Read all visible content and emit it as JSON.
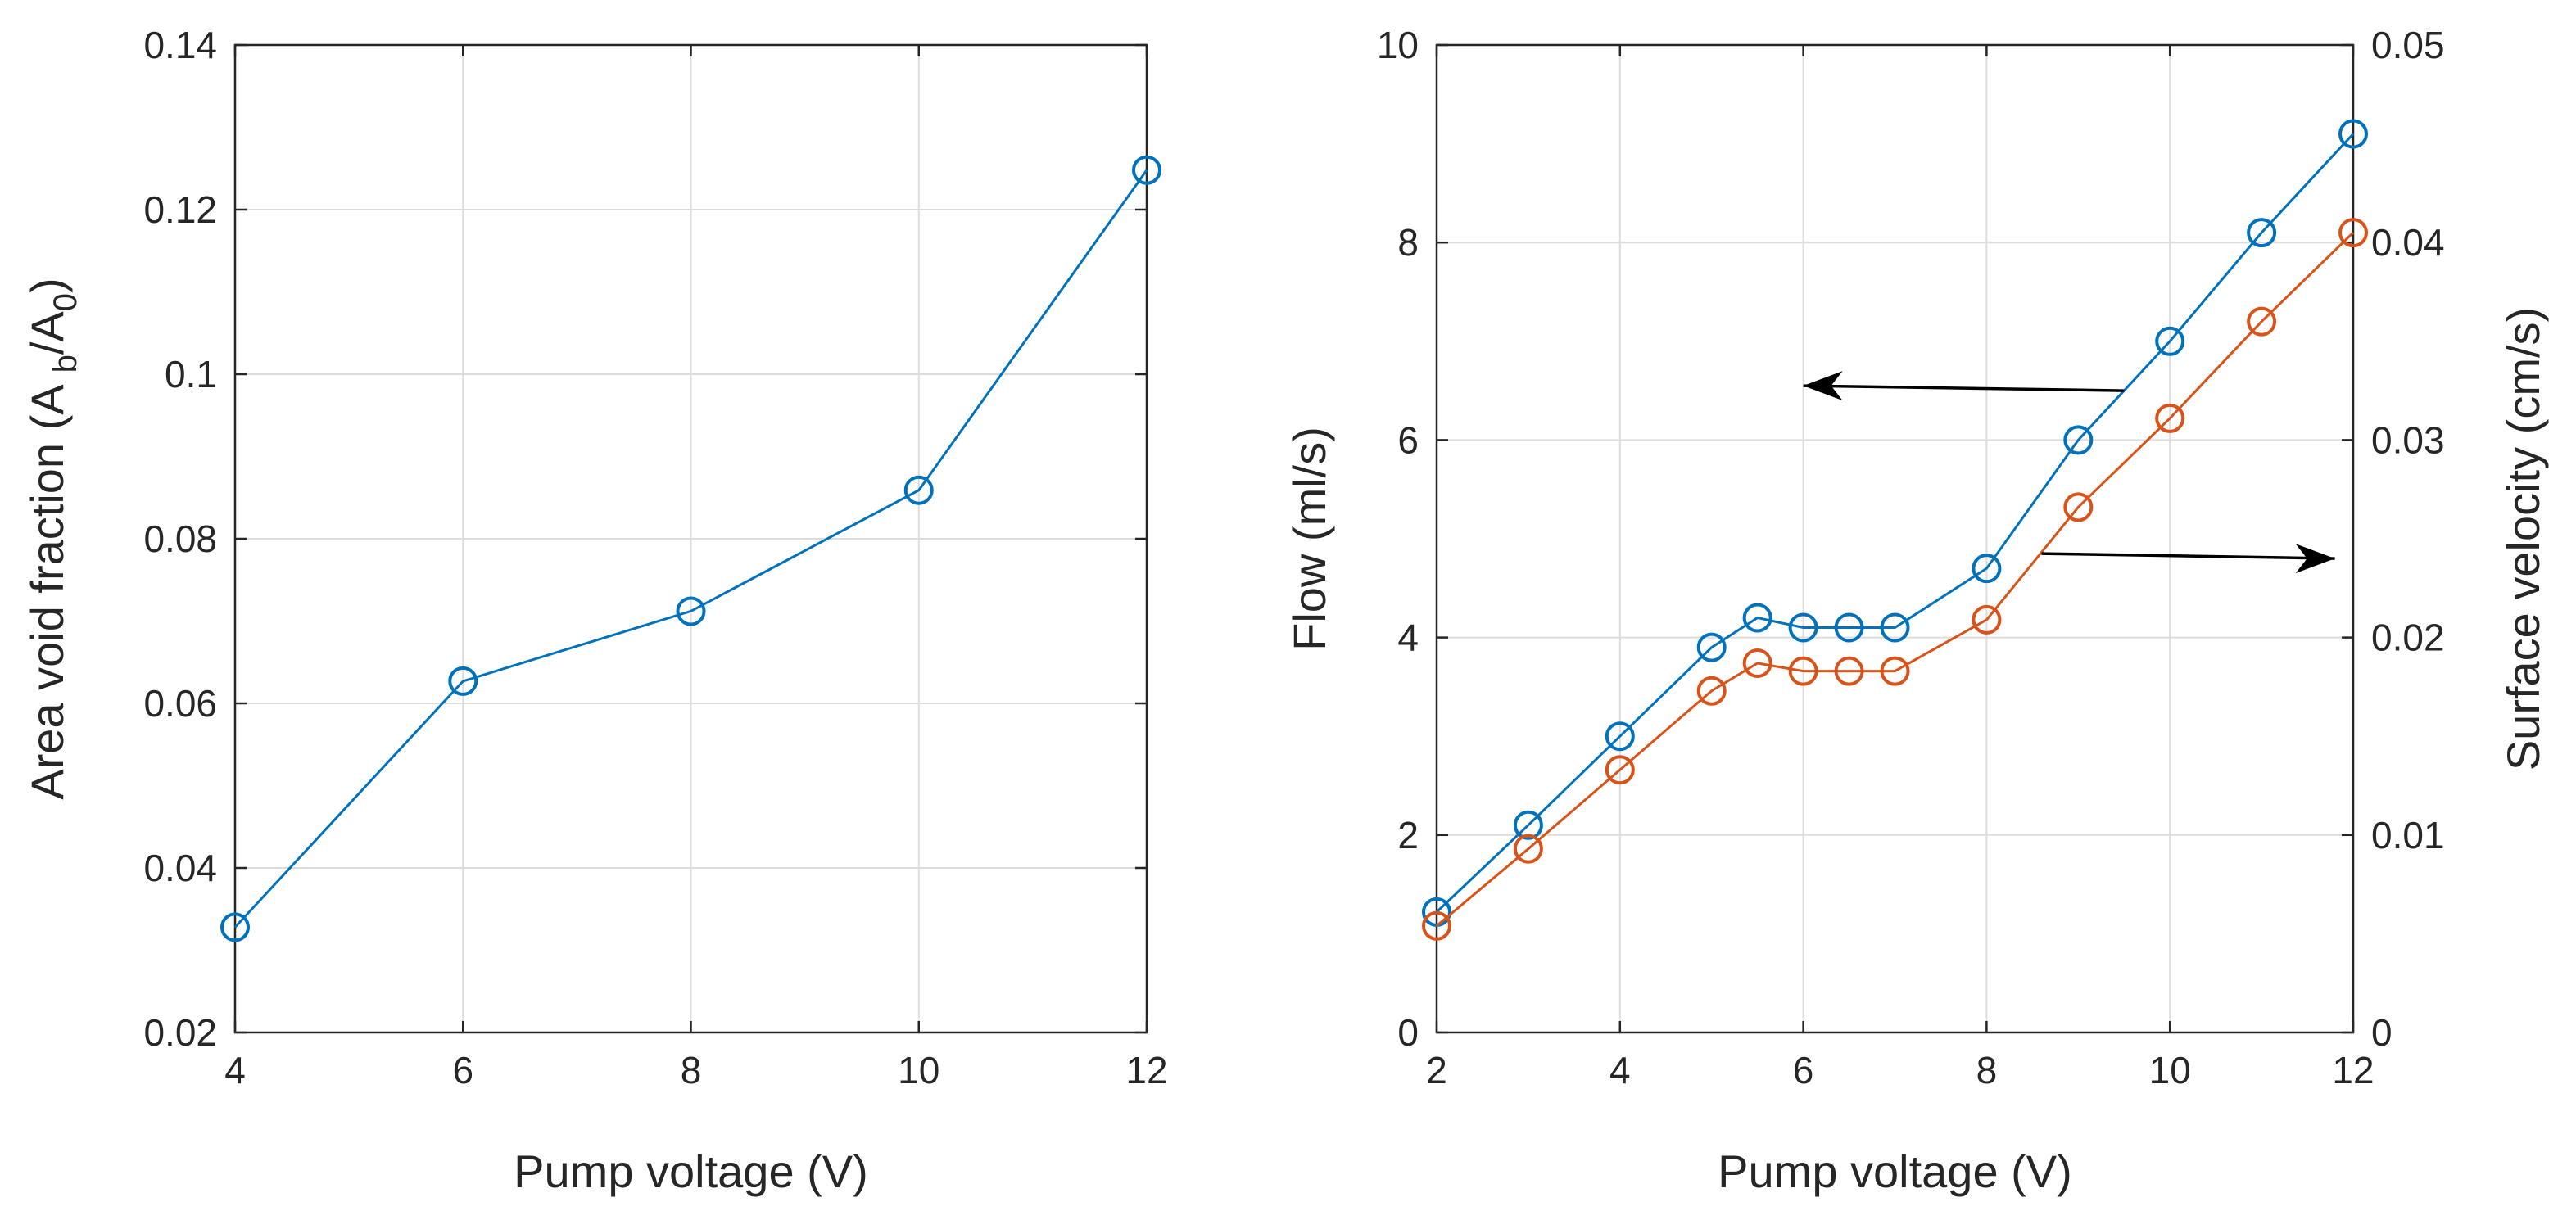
{
  "chart_data": [
    {
      "type": "line",
      "xlabel": "Pump voltage (V)",
      "ylabel_parts": [
        "Area void fraction (A",
        "b",
        "/A",
        "0",
        ")"
      ],
      "xlim": [
        4,
        12
      ],
      "ylim": [
        0.02,
        0.14
      ],
      "xticks": [
        4,
        6,
        8,
        10,
        12
      ],
      "yticks": [
        0.02,
        0.04,
        0.06,
        0.08,
        0.1,
        0.12,
        0.14
      ],
      "xtick_labels": [
        "4",
        "6",
        "8",
        "10",
        "12"
      ],
      "ytick_labels": [
        "0.02",
        "0.04",
        "0.06",
        "0.08",
        "0.1",
        "0.12",
        "0.14"
      ],
      "grid": true,
      "series": [
        {
          "name": "Area void fraction",
          "color": "#0072BD",
          "marker": "circle",
          "x": [
            4,
            6,
            8,
            10,
            12
          ],
          "y": [
            0.0328,
            0.0627,
            0.0712,
            0.0859,
            0.1248
          ]
        }
      ]
    },
    {
      "type": "line",
      "xlabel": "Pump voltage (V)",
      "ylabel": "Flow (ml/s)",
      "ylabel_right": "Surface velocity (cm/s)",
      "xlim": [
        2,
        12
      ],
      "ylim": [
        0,
        10
      ],
      "ylim_right": [
        0,
        0.05
      ],
      "xticks": [
        2,
        4,
        6,
        8,
        10,
        12
      ],
      "yticks": [
        0,
        2,
        4,
        6,
        8,
        10
      ],
      "yticks_right": [
        0,
        0.01,
        0.02,
        0.03,
        0.04,
        0.05
      ],
      "xtick_labels": [
        "2",
        "4",
        "6",
        "8",
        "10",
        "12"
      ],
      "ytick_labels": [
        "0",
        "2",
        "4",
        "6",
        "8",
        "10"
      ],
      "ytick_labels_right": [
        "0",
        "0.01",
        "0.02",
        "0.03",
        "0.04",
        "0.05"
      ],
      "grid": true,
      "series": [
        {
          "name": "Flow",
          "axis": "left",
          "color": "#0072BD",
          "marker": "circle",
          "x": [
            2,
            3,
            4,
            5,
            5.5,
            6,
            6.5,
            7,
            8,
            9,
            10,
            11,
            12
          ],
          "y": [
            1.22,
            2.1,
            3.0,
            3.9,
            4.2,
            4.1,
            4.1,
            4.1,
            4.7,
            6.0,
            7.0,
            8.1,
            9.1
          ]
        },
        {
          "name": "Surface velocity",
          "axis": "right",
          "color": "#D95319",
          "marker": "circle",
          "x": [
            2,
            3,
            4,
            5,
            5.5,
            6,
            6.5,
            7,
            8,
            9,
            10,
            11,
            12
          ],
          "y": [
            0.0054,
            0.0093,
            0.0133,
            0.0173,
            0.0187,
            0.0183,
            0.0183,
            0.0183,
            0.0209,
            0.0266,
            0.0311,
            0.036,
            0.0405
          ]
        }
      ],
      "annotations": [
        {
          "type": "arrow",
          "direction": "left",
          "points_to": "left axis",
          "from": [
            9.5,
            6.5
          ],
          "to": [
            6.0,
            6.55
          ]
        },
        {
          "type": "arrow",
          "direction": "right",
          "points_to": "right axis",
          "from": [
            8.6,
            4.85
          ],
          "to": [
            11.8,
            4.8
          ]
        }
      ]
    }
  ]
}
